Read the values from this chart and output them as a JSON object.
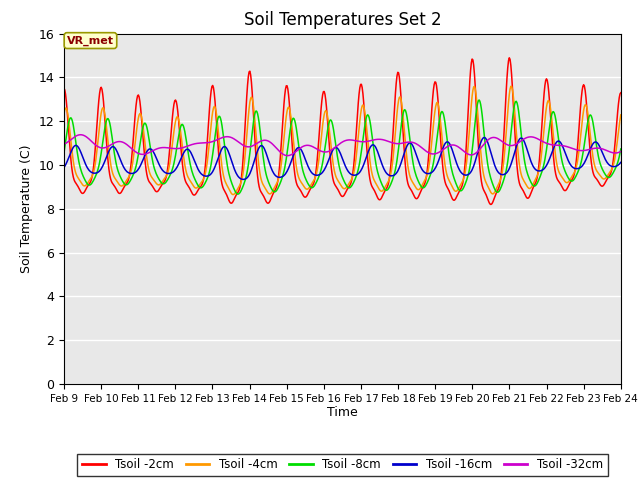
{
  "title": "Soil Temperatures Set 2",
  "xlabel": "Time",
  "ylabel": "Soil Temperature (C)",
  "ylim": [
    0,
    16
  ],
  "yticks": [
    0,
    2,
    4,
    6,
    8,
    10,
    12,
    14,
    16
  ],
  "x_labels": [
    "Feb 9",
    "Feb 10",
    "Feb 11",
    "Feb 12",
    "Feb 13",
    "Feb 14",
    "Feb 15",
    "Feb 16",
    "Feb 17",
    "Feb 18",
    "Feb 19",
    "Feb 20",
    "Feb 21",
    "Feb 22",
    "Feb 23",
    "Feb 24"
  ],
  "annotation_text": "VR_met",
  "colors": {
    "Tsoil -2cm": "#ff0000",
    "Tsoil -4cm": "#ff9900",
    "Tsoil -8cm": "#00dd00",
    "Tsoil -16cm": "#0000cc",
    "Tsoil -32cm": "#cc00cc"
  },
  "background_color": "#e8e8e8",
  "fig_background": "#ffffff",
  "grid_color": "#ffffff",
  "legend_labels": [
    "Tsoil -2cm",
    "Tsoil -4cm",
    "Tsoil -8cm",
    "Tsoil -16cm",
    "Tsoil -32cm"
  ]
}
